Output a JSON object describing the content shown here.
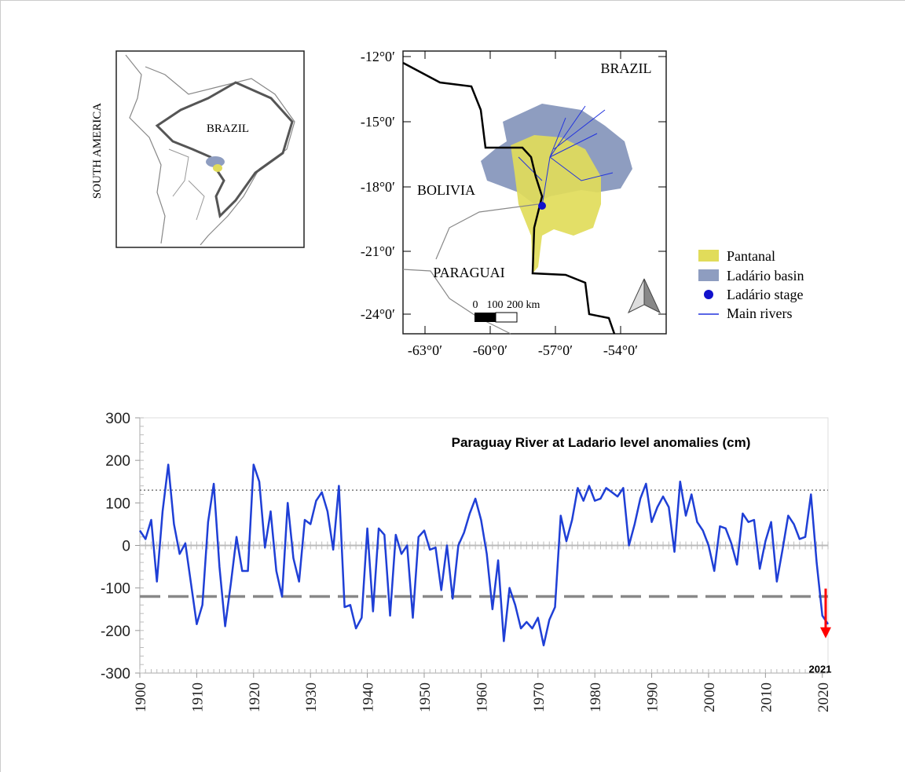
{
  "maps": {
    "inset": {
      "title": "SOUTH AMERICA",
      "country": "BRAZIL"
    },
    "main": {
      "countries": [
        "BRAZIL",
        "BOLIVIA",
        "PARAGUAI"
      ],
      "lat_labels": [
        "-12°0′",
        "-15°0′",
        "-18°0′",
        "-21°0′",
        "-24°0′"
      ],
      "lon_labels": [
        "-63°0′",
        "-60°0′",
        "-57°0′",
        "-54°0′"
      ],
      "scale_labels": [
        "0",
        "100",
        "200 km"
      ]
    },
    "legend": [
      "Pantanal",
      "Ladário basin",
      "Ladário stage",
      "Main rivers"
    ]
  },
  "chart_data": {
    "type": "line",
    "title": "Paraguay River at Ladario level anomalies (cm)",
    "annotation": "2021",
    "color": "#1f3fd6",
    "x": [
      1900,
      1901,
      1902,
      1903,
      1904,
      1905,
      1906,
      1907,
      1908,
      1909,
      1910,
      1911,
      1912,
      1913,
      1914,
      1915,
      1916,
      1917,
      1918,
      1919,
      1920,
      1921,
      1922,
      1923,
      1924,
      1925,
      1926,
      1927,
      1928,
      1929,
      1930,
      1931,
      1932,
      1933,
      1934,
      1935,
      1936,
      1937,
      1938,
      1939,
      1940,
      1941,
      1942,
      1943,
      1944,
      1945,
      1946,
      1947,
      1948,
      1949,
      1950,
      1951,
      1952,
      1953,
      1954,
      1955,
      1956,
      1957,
      1958,
      1959,
      1960,
      1961,
      1962,
      1963,
      1964,
      1965,
      1966,
      1967,
      1968,
      1969,
      1970,
      1971,
      1972,
      1973,
      1974,
      1975,
      1976,
      1977,
      1978,
      1979,
      1980,
      1981,
      1982,
      1983,
      1984,
      1985,
      1986,
      1987,
      1988,
      1989,
      1990,
      1991,
      1992,
      1993,
      1994,
      1995,
      1996,
      1997,
      1998,
      1999,
      2000,
      2001,
      2002,
      2003,
      2004,
      2005,
      2006,
      2007,
      2008,
      2009,
      2010,
      2011,
      2012,
      2013,
      2014,
      2015,
      2016,
      2017,
      2018,
      2019,
      2020,
      2021
    ],
    "values": [
      35,
      15,
      60,
      -85,
      80,
      190,
      50,
      -20,
      5,
      -90,
      -185,
      -140,
      55,
      145,
      -50,
      -190,
      -90,
      20,
      -60,
      -60,
      190,
      150,
      -5,
      80,
      -60,
      -120,
      100,
      -30,
      -85,
      60,
      50,
      105,
      125,
      80,
      -10,
      140,
      -145,
      -140,
      -195,
      -170,
      40,
      -155,
      40,
      25,
      -165,
      25,
      -20,
      0,
      -170,
      20,
      35,
      -10,
      -5,
      -105,
      0,
      -125,
      0,
      30,
      75,
      110,
      60,
      -20,
      -150,
      -35,
      -225,
      -100,
      -140,
      -195,
      -180,
      -195,
      -170,
      -235,
      -175,
      -145,
      70,
      10,
      60,
      135,
      105,
      140,
      105,
      110,
      135,
      125,
      115,
      135,
      0,
      50,
      110,
      145,
      55,
      90,
      115,
      90,
      -15,
      150,
      70,
      120,
      55,
      35,
      0,
      -60,
      45,
      40,
      5,
      -45,
      75,
      55,
      60,
      -55,
      10,
      55,
      -85,
      -10,
      70,
      50,
      15,
      20,
      120,
      -40,
      -165,
      -185
    ],
    "xlim": [
      1900,
      2021
    ],
    "xticks": [
      1900,
      1910,
      1920,
      1930,
      1940,
      1950,
      1960,
      1970,
      1980,
      1990,
      2000,
      2010,
      2020
    ],
    "ylim": [
      -300,
      300
    ],
    "yticks": [
      -300,
      -200,
      -100,
      0,
      100,
      200,
      300
    ],
    "reference_lines": [
      {
        "value": 130,
        "style": "dotted"
      },
      {
        "value": -120,
        "style": "dashed"
      }
    ]
  }
}
